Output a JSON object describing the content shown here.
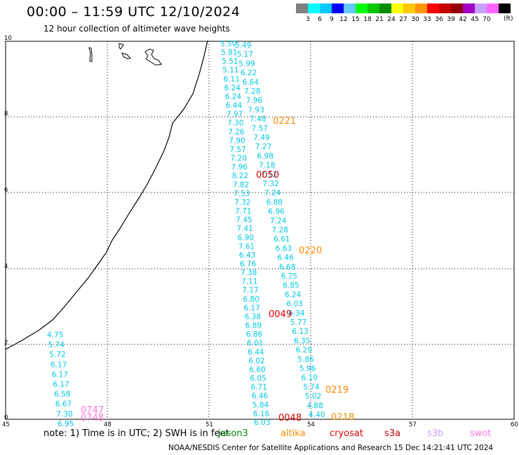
{
  "title": "00:00  –  11:59 UTC 12/10/2024",
  "subtitle": "12 hour collection of altimeter wave heights",
  "color_scale": {
    "unit": "(ft)",
    "colors": [
      "#808080",
      "#00ffff",
      "#00c8ff",
      "#0000ff",
      "#64c8ff",
      "#00ff00",
      "#00c800",
      "#008c00",
      "#ffff00",
      "#ffc800",
      "#ff9600",
      "#ff0000",
      "#c80000",
      "#960000",
      "#a000c8",
      "#c8a0ff",
      "#ff64ff",
      "#000000"
    ],
    "labels": [
      "3",
      "6",
      "9",
      "12",
      "15",
      "18",
      "21",
      "24",
      "27",
      "30",
      "33",
      "36",
      "39",
      "42",
      "45",
      "70"
    ]
  },
  "axes": {
    "x_ticks": [
      "45",
      "48",
      "51",
      "54",
      "57",
      "60"
    ],
    "y_ticks": [
      "0",
      "2",
      "4",
      "6",
      "8",
      "10"
    ]
  },
  "tracks": {
    "track_a": {
      "color": "#00c8e6",
      "values": [
        "5.50",
        "5.81",
        "5.51",
        "5.11",
        "6.11",
        "6.24",
        "6.24",
        "6.44",
        "7.97",
        "7.30",
        "7.26",
        "7.90",
        "7.57",
        "7.20",
        "7.96",
        "8.22",
        "7.82",
        "7.53",
        "7.32",
        "7.71",
        "7.45",
        "7.41",
        "6.90",
        "7.61",
        "6.43",
        "6.76",
        "7.38",
        "7.11",
        "7.17",
        "6.80",
        "6.17",
        "6.38",
        "6.89",
        "6.86",
        "6.01",
        "6.44",
        "6.02",
        "6.60",
        "6.05",
        "6.71",
        "6.46",
        "5.84",
        "6.16",
        "6.03"
      ]
    },
    "track_b": {
      "color": "#00c8e6",
      "values": [
        "5.49",
        "5.17",
        "5.99",
        "6.22",
        "6.64",
        "7.28",
        "7.96",
        "7.93",
        "7.48",
        "7.57",
        "7.49",
        "7.27",
        "6.98",
        "7.18",
        "7.12",
        "7.32",
        "7.24",
        "6.88",
        "6.96",
        "7.24",
        "7.28",
        "6.61",
        "6.63",
        "6.46",
        "6.68",
        "6.75",
        "6.85",
        "6.24",
        "6.03",
        "6.34",
        "5.77",
        "6.13",
        "6.35",
        "6.29",
        "5.86",
        "5.96",
        "6.10",
        "5.74",
        "5.02",
        "4.88",
        "4.40"
      ]
    },
    "track_c": {
      "color": "#00c8e6",
      "values": [
        "4.75",
        "5.74",
        "5.72",
        "6.17",
        "6.17",
        "6.17",
        "6.58",
        "6.67",
        "7.30",
        "6.95"
      ]
    }
  },
  "time_labels": [
    {
      "text": "0221",
      "color": "#ff8c00"
    },
    {
      "text": "0050",
      "color": "#e00000"
    },
    {
      "text": "0220",
      "color": "#ff8c00"
    },
    {
      "text": "0049",
      "color": "#e00000"
    },
    {
      "text": "0219",
      "color": "#ff8c00"
    },
    {
      "text": "0048",
      "color": "#e00000"
    },
    {
      "text": "0218",
      "color": "#ff8c00"
    },
    {
      "text": "0747",
      "color": "#ff78dc"
    },
    {
      "text": "0748",
      "color": "#ff78dc"
    }
  ],
  "note": "note:  1) Time is in UTC;  2) SWH is in feet",
  "satellites": [
    {
      "name": "jason3",
      "color": "#008c00"
    },
    {
      "name": "altika",
      "color": "#ff8c00"
    },
    {
      "name": "cryosat",
      "color": "#e00000"
    },
    {
      "name": "s3a",
      "color": "#c80000"
    },
    {
      "name": "s3b",
      "color": "#c8a0ff"
    },
    {
      "name": "swot",
      "color": "#ff78dc"
    }
  ],
  "footer": "NOAA/NESDIS Center for Satellite Applications and Research     15 Dec 14:21:41 UTC 2024"
}
